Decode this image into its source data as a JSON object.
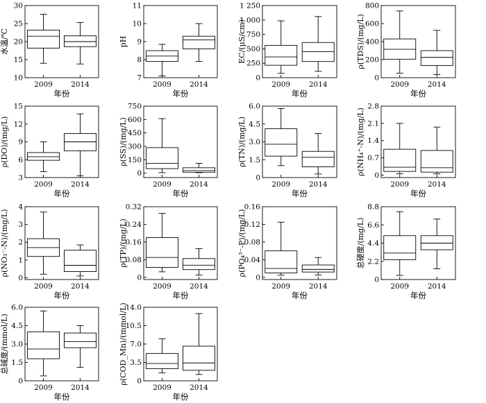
{
  "figure": {
    "panel_count": 14,
    "box_fill": "#ffffff",
    "line_color": "#000000"
  },
  "chart_data": [
    {
      "type": "box",
      "ylabel": "水温/℃",
      "xlabel": "年份",
      "categories": [
        "2009",
        "2014"
      ],
      "ylim": [
        10,
        30
      ],
      "yticks": [
        "10",
        "15",
        "20",
        "25",
        "30"
      ],
      "series": [
        {
          "name": "2009",
          "whisker_low": 14.0,
          "q1": 18.2,
          "median": 21.5,
          "q3": 23.2,
          "whisker_high": 27.6
        },
        {
          "name": "2014",
          "whisker_low": 13.8,
          "q1": 18.6,
          "median": 20.0,
          "q3": 21.6,
          "whisker_high": 25.3
        }
      ]
    },
    {
      "type": "box",
      "ylabel": "pH",
      "xlabel": "年份",
      "categories": [
        "2009",
        "2014"
      ],
      "ylim": [
        7,
        11
      ],
      "yticks": [
        "7",
        "8",
        "9",
        "10",
        "11"
      ],
      "series": [
        {
          "name": "2009",
          "whisker_low": 7.1,
          "q1": 7.9,
          "median": 8.2,
          "q3": 8.5,
          "whisker_high": 8.85
        },
        {
          "name": "2014",
          "whisker_low": 7.9,
          "q1": 8.6,
          "median": 9.1,
          "q3": 9.3,
          "whisker_high": 10.0
        }
      ]
    },
    {
      "type": "box",
      "ylabel": "EC/(μS/cm)",
      "xlabel": "年份",
      "categories": [
        "2009",
        "2014"
      ],
      "ylim": [
        0,
        1250
      ],
      "yticks": [
        "0",
        "250",
        "500",
        "750",
        "1 000",
        "1 250"
      ],
      "series": [
        {
          "name": "2009",
          "whisker_low": 75,
          "q1": 215,
          "median": 360,
          "q3": 560,
          "whisker_high": 985
        },
        {
          "name": "2014",
          "whisker_low": 110,
          "q1": 280,
          "median": 450,
          "q3": 610,
          "whisker_high": 1060
        }
      ]
    },
    {
      "type": "box",
      "ylabel": "ρ(TDS)/(mg/L)",
      "xlabel": "年份",
      "categories": [
        "2009",
        "2014"
      ],
      "ylim": [
        0,
        800
      ],
      "yticks": [
        "0",
        "200",
        "400",
        "600",
        "800"
      ],
      "series": [
        {
          "name": "2009",
          "whisker_low": 50,
          "q1": 205,
          "median": 315,
          "q3": 430,
          "whisker_high": 740
        },
        {
          "name": "2014",
          "whisker_low": 35,
          "q1": 135,
          "median": 225,
          "q3": 300,
          "whisker_high": 525
        }
      ]
    },
    {
      "type": "box",
      "ylabel": "ρ(DO)/(mg/L)",
      "xlabel": "年份",
      "categories": [
        "2009",
        "2014"
      ],
      "ylim": [
        3,
        15
      ],
      "yticks": [
        "3",
        "6",
        "9",
        "12",
        "15"
      ],
      "series": [
        {
          "name": "2009",
          "whisker_low": 4.0,
          "q1": 5.9,
          "median": 6.5,
          "q3": 7.2,
          "whisker_high": 9.0
        },
        {
          "name": "2014",
          "whisker_low": 3.3,
          "q1": 7.5,
          "median": 9.0,
          "q3": 10.4,
          "whisker_high": 13.7
        }
      ]
    },
    {
      "type": "box",
      "ylabel": "ρ(SS)/(mg/L)",
      "xlabel": "年份",
      "categories": [
        "2009",
        "2014"
      ],
      "ylim": [
        -50,
        750
      ],
      "yticks": [
        "0",
        "150",
        "300",
        "450",
        "600",
        "750"
      ],
      "series": [
        {
          "name": "2009",
          "whisker_low": 5,
          "q1": 50,
          "median": 110,
          "q3": 285,
          "whisker_high": 610
        },
        {
          "name": "2014",
          "whisker_low": 5,
          "q1": 10,
          "median": 28,
          "q3": 60,
          "whisker_high": 110
        }
      ]
    },
    {
      "type": "box",
      "ylabel": "ρ(TN)/(mg/L)",
      "xlabel": "年份",
      "categories": [
        "2009",
        "2014"
      ],
      "ylim": [
        0,
        6.0
      ],
      "yticks": [
        "0",
        "1.5",
        "3.0",
        "4.5",
        "6.0"
      ],
      "series": [
        {
          "name": "2009",
          "whisker_low": 1.0,
          "q1": 1.8,
          "median": 2.8,
          "q3": 4.1,
          "whisker_high": 5.8
        },
        {
          "name": "2014",
          "whisker_low": 0.3,
          "q1": 0.9,
          "median": 1.7,
          "q3": 2.2,
          "whisker_high": 3.7
        }
      ]
    },
    {
      "type": "box",
      "ylabel": "ρ(NH₄⁺-N)/(mg/L)",
      "xlabel": "年份",
      "categories": [
        "2009",
        "2014"
      ],
      "ylim": [
        -0.1,
        2.8
      ],
      "yticks": [
        "0",
        "0.7",
        "1.4",
        "2.1",
        "2.8"
      ],
      "series": [
        {
          "name": "2009",
          "whisker_low": 0.05,
          "q1": 0.15,
          "median": 0.32,
          "q3": 1.05,
          "whisker_high": 2.1
        },
        {
          "name": "2014",
          "whisker_low": 0.05,
          "q1": 0.12,
          "median": 0.3,
          "q3": 1.0,
          "whisker_high": 1.95
        }
      ]
    },
    {
      "type": "box",
      "ylabel": "ρ(NO₃⁻-N)/(mg/L)",
      "xlabel": "年份",
      "categories": [
        "2009",
        "2014"
      ],
      "ylim": [
        -0.1,
        4
      ],
      "yticks": [
        "0",
        "1",
        "2",
        "3",
        "4"
      ],
      "series": [
        {
          "name": "2009",
          "whisker_low": 0.2,
          "q1": 1.2,
          "median": 1.7,
          "q3": 2.2,
          "whisker_high": 3.7
        },
        {
          "name": "2014",
          "whisker_low": 0.1,
          "q1": 0.35,
          "median": 0.7,
          "q3": 1.55,
          "whisker_high": 1.85
        }
      ]
    },
    {
      "type": "box",
      "ylabel": "ρ(TP)/(mg/L)",
      "xlabel": "年份",
      "categories": [
        "2009",
        "2014"
      ],
      "ylim": [
        -0.01,
        0.32
      ],
      "yticks": [
        "0",
        "0.08",
        "0.16",
        "0.24",
        "0.32"
      ],
      "series": [
        {
          "name": "2009",
          "whisker_low": 0.025,
          "q1": 0.045,
          "median": 0.09,
          "q3": 0.18,
          "whisker_high": 0.29
        },
        {
          "name": "2014",
          "whisker_low": 0.01,
          "q1": 0.035,
          "median": 0.055,
          "q3": 0.085,
          "whisker_high": 0.13
        }
      ]
    },
    {
      "type": "box",
      "ylabel": "ρ(PO₄³⁻-P)/(mg/L)",
      "xlabel": "年份",
      "categories": [
        "2009",
        "2014"
      ],
      "ylim": [
        -0.005,
        0.16
      ],
      "yticks": [
        "0",
        "0.04",
        "0.08",
        "0.12",
        "0.16"
      ],
      "series": [
        {
          "name": "2009",
          "whisker_low": 0.005,
          "q1": 0.01,
          "median": 0.02,
          "q3": 0.06,
          "whisker_high": 0.125
        },
        {
          "name": "2014",
          "whisker_low": 0.005,
          "q1": 0.012,
          "median": 0.018,
          "q3": 0.028,
          "whisker_high": 0.045
        }
      ]
    },
    {
      "type": "box",
      "ylabel": "总硬度/(mg/L)",
      "xlabel": "年份",
      "categories": [
        "2009",
        "2014"
      ],
      "ylim": [
        0,
        8.8
      ],
      "yticks": [
        "0",
        "2.2",
        "4.4",
        "6.6",
        "8.8"
      ],
      "series": [
        {
          "name": "2009",
          "whisker_low": 0.5,
          "q1": 2.4,
          "median": 3.2,
          "q3": 5.3,
          "whisker_high": 8.2
        },
        {
          "name": "2014",
          "whisker_low": 1.3,
          "q1": 3.6,
          "median": 4.4,
          "q3": 5.3,
          "whisker_high": 7.3
        }
      ]
    },
    {
      "type": "box",
      "ylabel": "总碱度/(mmol/L)",
      "xlabel": "年份",
      "categories": [
        "2009",
        "2014"
      ],
      "ylim": [
        0,
        6.0
      ],
      "yticks": [
        "0",
        "1.5",
        "3.0",
        "4.5",
        "6.0"
      ],
      "series": [
        {
          "name": "2009",
          "whisker_low": 0.4,
          "q1": 1.8,
          "median": 2.6,
          "q3": 4.0,
          "whisker_high": 5.7
        },
        {
          "name": "2014",
          "whisker_low": 1.1,
          "q1": 2.7,
          "median": 3.2,
          "q3": 3.9,
          "whisker_high": 4.5
        }
      ]
    },
    {
      "type": "box",
      "ylabel": "ρ(COD_Mn)/(mmol/L)",
      "xlabel": "年份",
      "categories": [
        "2009",
        "2014"
      ],
      "ylim": [
        0,
        14.0
      ],
      "yticks": [
        "0",
        "3.5",
        "7.0",
        "10.5",
        "14.0"
      ],
      "series": [
        {
          "name": "2009",
          "whisker_low": 1.5,
          "q1": 2.3,
          "median": 3.3,
          "q3": 5.2,
          "whisker_high": 8.0
        },
        {
          "name": "2014",
          "whisker_low": 1.2,
          "q1": 2.0,
          "median": 3.4,
          "q3": 6.6,
          "whisker_high": 12.8
        }
      ]
    }
  ]
}
